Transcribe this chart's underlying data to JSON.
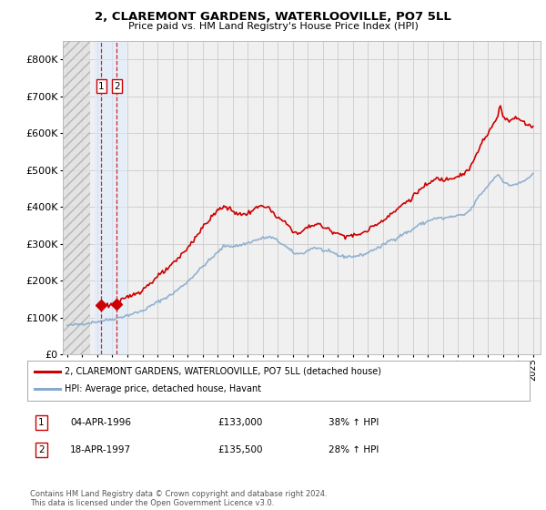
{
  "title": "2, CLAREMONT GARDENS, WATERLOOVILLE, PO7 5LL",
  "subtitle": "Price paid vs. HM Land Registry's House Price Index (HPI)",
  "legend_line1": "2, CLAREMONT GARDENS, WATERLOOVILLE, PO7 5LL (detached house)",
  "legend_line2": "HPI: Average price, detached house, Havant",
  "transaction1_date": "04-APR-1996",
  "transaction1_price": "£133,000",
  "transaction1_hpi": "38% ↑ HPI",
  "transaction2_date": "18-APR-1997",
  "transaction2_price": "£135,500",
  "transaction2_hpi": "28% ↑ HPI",
  "sale1_year": 1996.27,
  "sale1_price": 133000,
  "sale2_year": 1997.3,
  "sale2_price": 135500,
  "ylim": [
    0,
    850000
  ],
  "xlim_left": 1993.7,
  "xlim_right": 2025.5,
  "yticks": [
    0,
    100000,
    200000,
    300000,
    400000,
    500000,
    600000,
    700000,
    800000
  ],
  "ytick_labels": [
    "£0",
    "£100K",
    "£200K",
    "£300K",
    "£400K",
    "£500K",
    "£600K",
    "£700K",
    "£800K"
  ],
  "xtick_years": [
    1994,
    1995,
    1996,
    1997,
    1998,
    1999,
    2000,
    2001,
    2002,
    2003,
    2004,
    2005,
    2006,
    2007,
    2008,
    2009,
    2010,
    2011,
    2012,
    2013,
    2014,
    2015,
    2016,
    2017,
    2018,
    2019,
    2020,
    2021,
    2022,
    2023,
    2024,
    2025
  ],
  "hatch_end_year": 1995.5,
  "highlight_start": 1995.8,
  "highlight_end": 1997.85,
  "line_color_red": "#cc0000",
  "line_color_blue": "#88aacc",
  "background_color": "#ffffff",
  "plot_bg_color": "#f0f0f0",
  "grid_color": "#cccccc",
  "copyright_text": "Contains HM Land Registry data © Crown copyright and database right 2024.\nThis data is licensed under the Open Government Licence v3.0."
}
